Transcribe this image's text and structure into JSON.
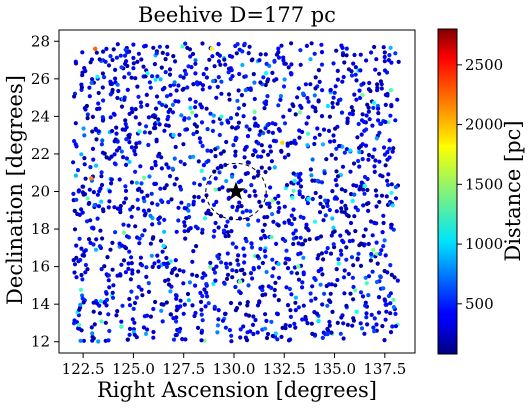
{
  "chart_data": {
    "type": "scatter",
    "title": "Beehive  D=177 pc",
    "xlabel": "Right Ascension [degrees]",
    "ylabel": "Declination [degrees]",
    "colorbar_label": "Distance [pc]",
    "xlim": [
      121.3,
      139.0
    ],
    "ylim": [
      11.4,
      28.6
    ],
    "xticks": [
      122.5,
      125.0,
      127.5,
      130.0,
      132.5,
      135.0,
      137.5
    ],
    "xtick_labels": [
      "122.5",
      "125.0",
      "127.5",
      "130.0",
      "132.5",
      "135.0",
      "137.5"
    ],
    "yticks": [
      12,
      14,
      16,
      18,
      20,
      22,
      24,
      26,
      28
    ],
    "ytick_labels": [
      "12",
      "14",
      "16",
      "18",
      "20",
      "22",
      "24",
      "26",
      "28"
    ],
    "colorbar_range": [
      80,
      2800
    ],
    "colorbar_ticks": [
      500,
      1000,
      1500,
      2000,
      2500
    ],
    "colorbar_tick_labels": [
      "500",
      "1000",
      "1500",
      "2000",
      "2500"
    ],
    "colormap": "jet",
    "cluster_center": {
      "ra": 130.1,
      "dec": 20.0,
      "marker": "star",
      "color": "#000000"
    },
    "cluster_circle": {
      "ra": 130.1,
      "dec": 20.0,
      "radius_deg": 1.5,
      "style": "dashed"
    },
    "field": {
      "ra": [
        122.0,
        138.2
      ],
      "dec": [
        12.0,
        27.9
      ]
    },
    "n_stars": 1700,
    "points": [
      [
        128.9,
        27.6,
        1800
      ],
      [
        125.3,
        23.2,
        1200
      ],
      [
        122.9,
        20.7,
        2100
      ],
      [
        135.9,
        19.5,
        1100
      ],
      [
        136.5,
        20.3,
        1200
      ],
      [
        137.8,
        25.4,
        1300
      ],
      [
        132.4,
        22.6,
        1900
      ],
      [
        123.1,
        27.6,
        2200
      ],
      [
        133.2,
        16.0,
        1400
      ],
      [
        131.6,
        26.3,
        1100
      ],
      [
        125.7,
        26.3,
        1200
      ],
      [
        124.4,
        12.8,
        1250
      ],
      [
        134.2,
        13.1,
        1050
      ],
      [
        136.1,
        13.6,
        1150
      ],
      [
        122.3,
        12.9,
        1300
      ],
      [
        130.3,
        15.2,
        1400
      ],
      [
        128.4,
        21.1,
        1200
      ],
      [
        127.0,
        23.0,
        1000
      ],
      [
        133.7,
        19.6,
        1100
      ],
      [
        126.5,
        17.1,
        1050
      ]
    ]
  }
}
